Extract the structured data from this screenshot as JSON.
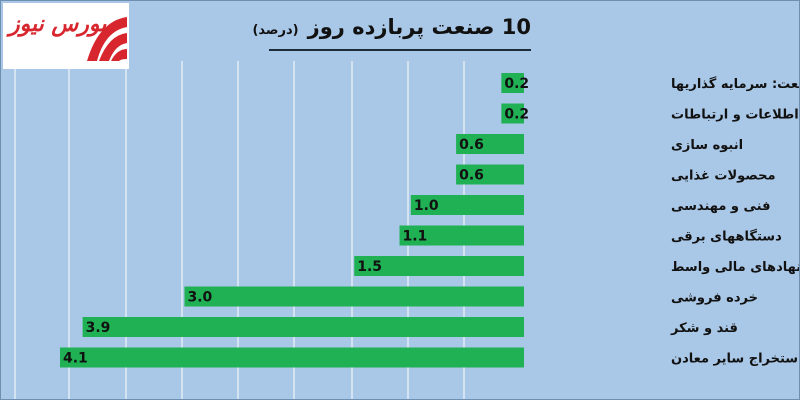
{
  "logo": {
    "text": "بورس نیوز"
  },
  "header": {
    "title": "10 صنعت پربازده روز",
    "unit": "(درصد)"
  },
  "colors": {
    "background": "#a9c7e6",
    "bar": "#1fb154",
    "gridline": "#ffffff",
    "brand": "#d7262e"
  },
  "chart_data": {
    "type": "bar",
    "orientation": "horizontal",
    "title": "10 صنعت پربازده روز (درصد)",
    "categories": [
      "صنعت: سرمایه گذاریها",
      "اطلاعات و ارتباطات",
      "انبوه سازی",
      "محصولات غذایی",
      "فنی و مهندسی",
      "دستگاههای برقی",
      "فعالیت های کمکی به نهادهای مالی واسط",
      "خرده فروشی",
      "قند و شکر",
      "استخراج سایر معادن"
    ],
    "values": [
      0.2,
      0.2,
      0.6,
      0.6,
      1.0,
      1.1,
      1.5,
      3.0,
      3.9,
      4.1
    ],
    "value_labels": [
      "0.2",
      "0.2",
      "0.6",
      "0.6",
      "1.0",
      "1.1",
      "1.5",
      "3.0",
      "3.9",
      "4.1"
    ],
    "xlim": [
      0,
      4.1
    ],
    "grid": true,
    "legend": "none"
  }
}
